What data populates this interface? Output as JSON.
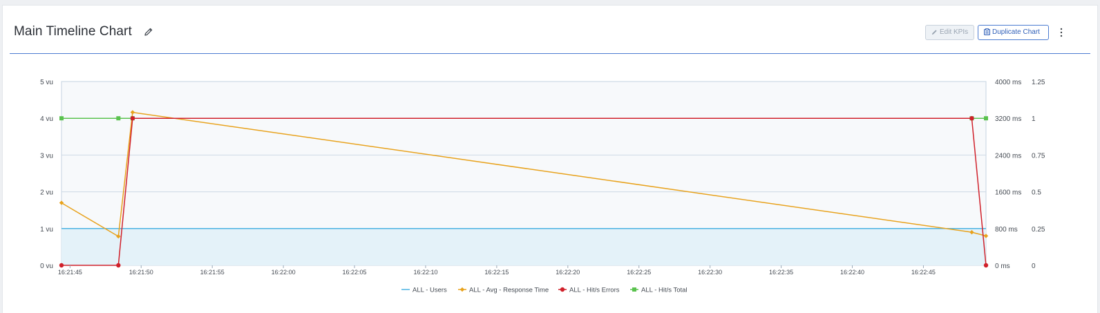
{
  "header": {
    "title": "Main Timeline Chart",
    "edit_kpis_label": "Edit KPIs",
    "duplicate_label": "Duplicate Chart"
  },
  "colors": {
    "users": "#4ab3e2",
    "avg_response": "#e8a21c",
    "hits_errors": "#d0202a",
    "hits_total": "#5ac24e",
    "accent": "#4b7bd1"
  },
  "chart_data": {
    "type": "line",
    "title": "",
    "y_left": {
      "ticks": [
        "0 vu",
        "1 vu",
        "2 vu",
        "3 vu",
        "4 vu",
        "5 vu"
      ],
      "range": [
        0,
        5
      ]
    },
    "y_right_ms": {
      "ticks": [
        "0 ms",
        "800 ms",
        "1600 ms",
        "2400 ms",
        "3200 ms",
        "4000 ms"
      ],
      "range": [
        0,
        4000
      ]
    },
    "y_right_ratio": {
      "ticks": [
        "0",
        "0.25",
        "0.5",
        "0.75",
        "1",
        "1.25"
      ],
      "range": [
        0,
        1.25
      ]
    },
    "x_range": [
      "16:21:44.4",
      "16:22:49.4"
    ],
    "x_ticks": [
      "16:21:45",
      "16:21:50",
      "16:21:55",
      "16:22:00",
      "16:22:05",
      "16:22:10",
      "16:22:15",
      "16:22:20",
      "16:22:25",
      "16:22:30",
      "16:22:35",
      "16:22:40",
      "16:22:45"
    ],
    "grid": true,
    "legend_position": "bottom-center",
    "series": [
      {
        "name": "ALL - Users",
        "axis": "vu",
        "style": "area",
        "points": [
          [
            "16:21:44.4",
            1
          ],
          [
            "16:22:49.4",
            1
          ]
        ]
      },
      {
        "name": "ALL - Avg - Response Time",
        "axis": "ms",
        "style": "line-diamond",
        "points": [
          [
            "16:21:44.4",
            1360
          ],
          [
            "16:21:48.4",
            630
          ],
          [
            "16:21:49.4",
            3330
          ],
          [
            "16:22:48.4",
            720
          ],
          [
            "16:22:49.4",
            640
          ]
        ]
      },
      {
        "name": "ALL - Hit/s Errors",
        "axis": "ratio",
        "style": "line-circle",
        "points": [
          [
            "16:21:44.4",
            0
          ],
          [
            "16:21:48.4",
            0
          ],
          [
            "16:21:49.4",
            1
          ],
          [
            "16:22:48.4",
            1
          ],
          [
            "16:22:49.4",
            0
          ]
        ]
      },
      {
        "name": "ALL - Hit/s Total",
        "axis": "ratio",
        "style": "line-square",
        "points": [
          [
            "16:21:44.4",
            1
          ],
          [
            "16:21:48.4",
            1
          ],
          [
            "16:21:49.4",
            1
          ],
          [
            "16:22:48.4",
            1
          ],
          [
            "16:22:49.4",
            1
          ]
        ]
      }
    ]
  }
}
